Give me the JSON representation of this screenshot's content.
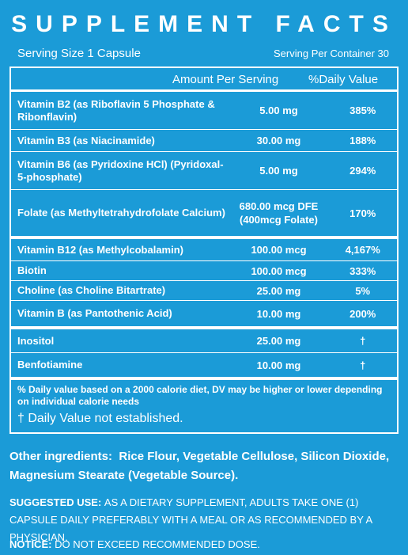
{
  "title": "SUPPLEMENT FACTS",
  "serving_size": "Serving Size 1 Capsule",
  "servings_per_container": "Serving Per Container  30",
  "table": {
    "headers": [
      "Amount Per Serving",
      "%Daily Value"
    ],
    "rows": [
      [
        "Vitamin B2 (as Riboflavin 5 Phosphate & Ribonflavin)",
        "5.00 mg",
        "385%"
      ],
      [
        "Vitamin B3 (as Niacinamide)",
        "30.00 mg",
        "188%"
      ],
      [
        "Vitamin B6 (as Pyridoxine HCl) (Pyridoxal-5-phosphate)",
        "5.00 mg",
        "294%"
      ],
      [
        "Folate (as Methyltetrahydrofolate Calcium)",
        "680.00 mcg DFE (400mcg Folate)",
        "170%"
      ],
      [
        "Vitamin B12 (as Methylcobalamin)",
        "100.00 mcg",
        "4,167%"
      ],
      [
        "Biotin",
        "100.00 mcg",
        "333%"
      ],
      [
        "Choline (as Choline Bitartrate)",
        "25.00 mg",
        "5%"
      ],
      [
        "Vitamin B (as Pantothenic Acid)",
        "10.00 mg",
        "200%"
      ],
      [
        "Inositol",
        "25.00 mg",
        "†"
      ],
      [
        "Benfotiamine",
        "10.00 mg",
        "†"
      ]
    ]
  },
  "footnotes": [
    "% Daily value based on a 2000 calorie diet, DV may be higher or lower depending on individual calorie needs",
    "† Daily Value not established."
  ],
  "other_ingredients": {
    "label": "Other ingredients:",
    "text": "Rice Flour, Vegetable Cellulose, Silicon Dioxide, Magnesium Stearate (Vegetable Source)."
  },
  "suggested_use": {
    "label": "SUGGESTED USE:",
    "text": "AS A DIETARY SUPPLEMENT, ADULTS TAKE ONE (1) CAPSULE DAILY PREFERABLY WITH A MEAL OR AS RECOMMENDED BY A PHYSICIAN."
  },
  "notice": {
    "label": "NOTICE:",
    "text": "DO NOT EXCEED RECOMMENDED DOSE."
  }
}
